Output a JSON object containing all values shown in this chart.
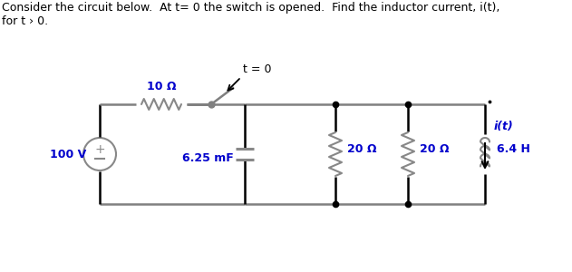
{
  "title_text": "Consider the circuit below.  At t= 0 the switch is opened.  Find the inductor current, i(t),",
  "title_line2": "for t › 0.",
  "bg_color": "#ffffff",
  "wire_color": "#808080",
  "wire_color2": "#000000",
  "text_color": "#000000",
  "label_color": "#0000cc",
  "component_color": "#000000",
  "voltage_label": "100 V",
  "resistor1_label": "10 Ω",
  "capacitor_label": "6.25 mF",
  "resistor2_label": "20 Ω",
  "resistor3_label": "20 Ω",
  "inductor_label": "6.4 H",
  "inductor_current_label": "i(t)",
  "switch_label": "t = 0",
  "font_size": 10
}
